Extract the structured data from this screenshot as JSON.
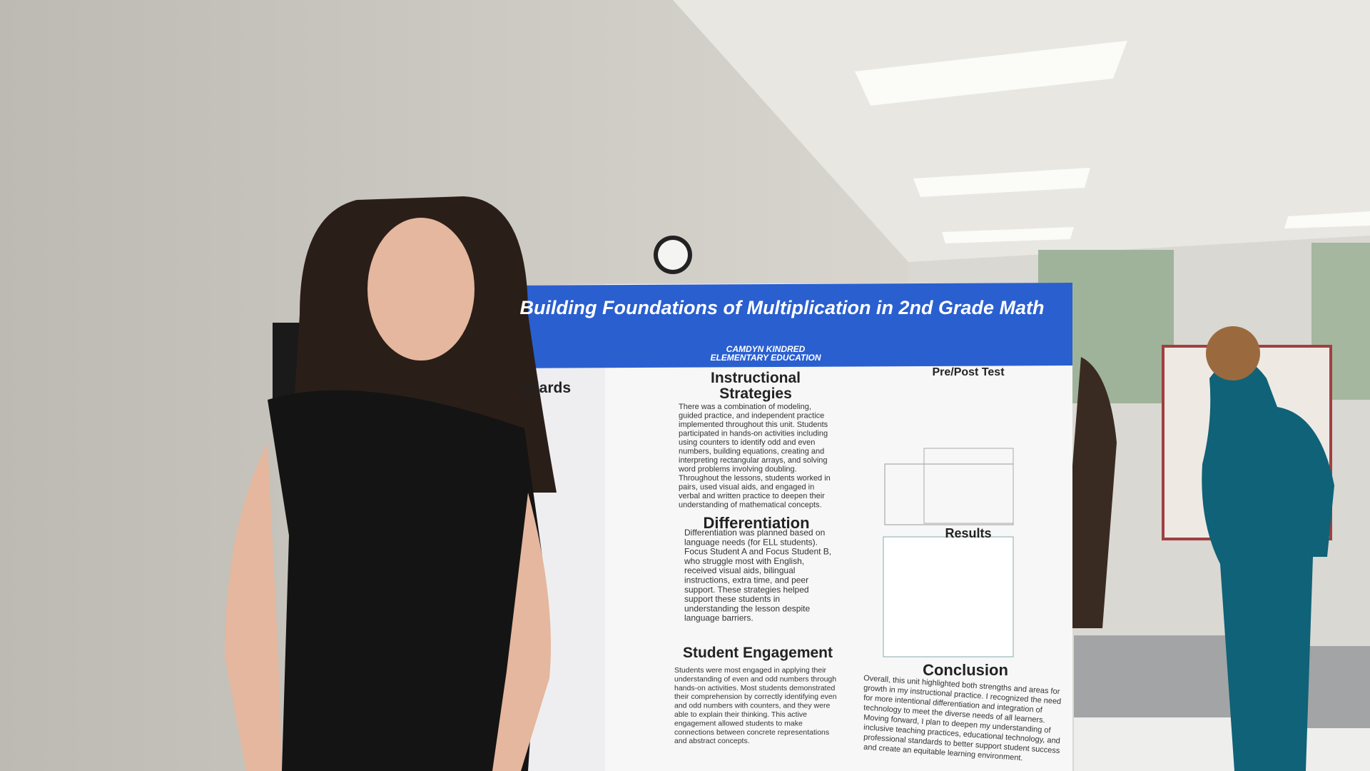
{
  "poster": {
    "title": "Building Foundations of Multiplication in 2nd Grade Math",
    "author": "CAMDYN KINDRED",
    "program": "ELEMENTARY EDUCATION",
    "left_heading": "ndards",
    "sections": [
      {
        "heading": [
          "Instructional",
          "Strategies"
        ],
        "lines": [
          "There was a combination of modeling,",
          "guided practice, and independent practice",
          "implemented throughout this unit.  Students",
          "participated in hands-on activities including",
          "using counters to identify odd and even",
          "numbers, building equations, creating and",
          "interpreting rectangular arrays, and solving",
          "word problems involving doubling.",
          "Throughout the lessons, students worked in",
          "pairs, used visual aids, and engaged in",
          "verbal and written practice to deepen their",
          "understanding of mathematical concepts."
        ]
      },
      {
        "heading": [
          "Differentiation"
        ],
        "lines": [
          "Differentiation was planned based on",
          "language needs (for ELL students).",
          "Focus Student A and Focus Student B,",
          "who struggle most with English,",
          "received visual aids, bilingual",
          "instructions, extra time, and peer",
          "support. These strategies helped",
          "support these students in",
          "understanding the lesson despite",
          "language barriers."
        ]
      },
      {
        "heading": [
          "Student Engagement"
        ],
        "lines": [
          "Students were most engaged in applying their",
          "understanding of even and odd numbers through",
          "hands-on activities. Most students demonstrated",
          "their comprehension by correctly identifying even",
          "and odd numbers with counters, and they were",
          "able to explain their thinking. This active",
          "engagement allowed students to make",
          "connections between concrete representations",
          "and abstract concepts."
        ]
      },
      {
        "heading": [
          "Pre/Post Test"
        ],
        "lines": []
      },
      {
        "heading": [
          "Results"
        ],
        "lines": []
      },
      {
        "heading": [
          "Conclusion"
        ],
        "lines": [
          "Overall, this unit highlighted both strengths and areas for",
          "growth in my instructional practice. I recognized the need",
          "for more intentional differentiation and integration of",
          "technology to meet the diverse needs of all learners.",
          "Moving forward, I plan to deepen my understanding of",
          "inclusive teaching practices, educational technology, and",
          "professional standards to better support student success",
          "and create an equitable learning environment."
        ]
      }
    ]
  }
}
